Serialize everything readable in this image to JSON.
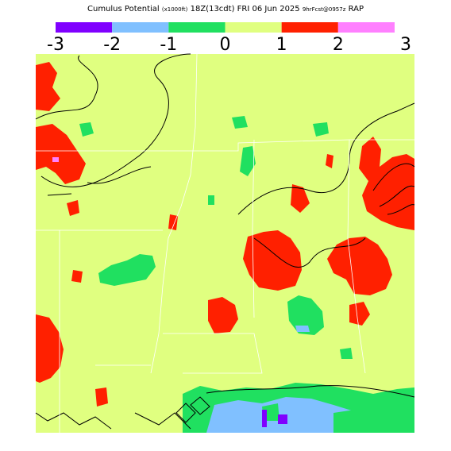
{
  "title": {
    "product": "Cumulus Potential",
    "units": "(x1000ft)",
    "valid": "18Z(13cdt)",
    "date": "FRI 06 Jun 2025",
    "forecast": "9hrFcst@0957z",
    "model": "RAP"
  },
  "colorbar": {
    "ticks": [
      -3,
      -2,
      -1,
      0,
      1,
      2,
      3
    ],
    "colors": [
      "#8000ff",
      "#80c0ff",
      "#20e060",
      "#e0ff80",
      "#ff2000",
      "#ff80ff"
    ]
  }
}
